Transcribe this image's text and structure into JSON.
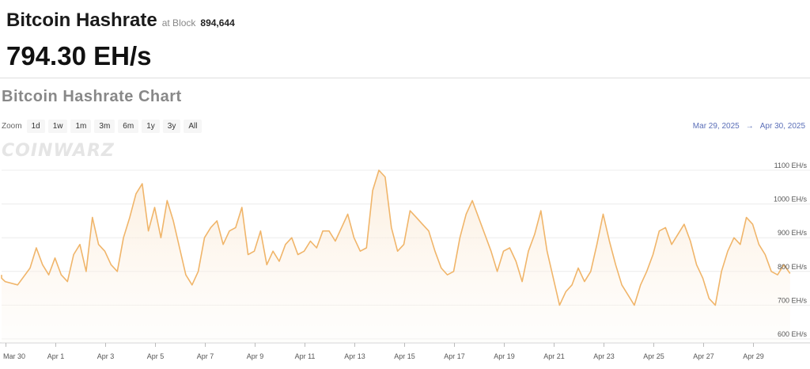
{
  "header": {
    "title": "Bitcoin Hashrate",
    "at_block_label": "at Block",
    "block_number": "894,644",
    "current_value": "794.30 EH/s"
  },
  "chart_title": "Bitcoin Hashrate Chart",
  "zoom": {
    "label": "Zoom",
    "buttons": [
      "1d",
      "1w",
      "1m",
      "3m",
      "6m",
      "1y",
      "3y",
      "All"
    ]
  },
  "range": {
    "from": "Mar 29, 2025",
    "arrow": "→",
    "to": "Apr 30, 2025"
  },
  "watermark": "COINWARZ",
  "colors": {
    "line": "#f0b56a",
    "fill_top": "#fbe7cf",
    "fill_bottom": "#fdfaf6",
    "range_text": "#5b6fb8"
  },
  "chart_data": {
    "type": "area",
    "title": "Bitcoin Hashrate Chart",
    "xlabel": "",
    "ylabel": "",
    "ylim": [
      600,
      1100
    ],
    "y_unit": "EH/s",
    "y_ticks": [
      "600 EH/s",
      "700 EH/s",
      "800 EH/s",
      "900 EH/s",
      "1000 EH/s",
      "1100 EH/s"
    ],
    "x_ticks": [
      "Mar 30",
      "Apr 1",
      "Apr 3",
      "Apr 5",
      "Apr 7",
      "Apr 9",
      "Apr 11",
      "Apr 13",
      "Apr 15",
      "Apr 17",
      "Apr 19",
      "Apr 21",
      "Apr 23",
      "Apr 25",
      "Apr 27",
      "Apr 29"
    ],
    "x_start": "Mar 29, 2025",
    "x_end": "Apr 30, 2025",
    "grid": "horizontal",
    "series": [
      {
        "x": [
          "2025-03-29",
          "2025-03-29T12:00",
          "2025-03-30",
          "2025-03-30T12:00",
          "2025-03-31",
          "2025-03-31T06:00",
          "2025-03-31T12:00",
          "2025-03-31T18:00",
          "2025-04-01",
          "2025-04-01T06:00",
          "2025-04-01T12:00",
          "2025-04-01T18:00",
          "2025-04-02",
          "2025-04-02T06:00",
          "2025-04-02T12:00",
          "2025-04-02T18:00",
          "2025-04-03",
          "2025-04-03T06:00",
          "2025-04-03T12:00",
          "2025-04-03T18:00",
          "2025-04-04",
          "2025-04-04T06:00",
          "2025-04-04T12:00",
          "2025-04-04T18:00",
          "2025-04-05",
          "2025-04-05T06:00",
          "2025-04-05T12:00",
          "2025-04-05T18:00",
          "2025-04-06",
          "2025-04-06T06:00",
          "2025-04-06T12:00",
          "2025-04-06T18:00",
          "2025-04-07",
          "2025-04-07T06:00",
          "2025-04-07T12:00",
          "2025-04-07T18:00",
          "2025-04-08",
          "2025-04-08T06:00",
          "2025-04-08T12:00",
          "2025-04-08T18:00",
          "2025-04-09",
          "2025-04-09T06:00",
          "2025-04-09T12:00",
          "2025-04-09T18:00",
          "2025-04-10",
          "2025-04-10T06:00",
          "2025-04-10T12:00",
          "2025-04-10T18:00",
          "2025-04-11",
          "2025-04-11T06:00",
          "2025-04-11T12:00",
          "2025-04-11T18:00",
          "2025-04-12",
          "2025-04-12T06:00",
          "2025-04-12T12:00",
          "2025-04-12T18:00",
          "2025-04-13",
          "2025-04-13T06:00",
          "2025-04-13T12:00",
          "2025-04-13T18:00",
          "2025-04-14",
          "2025-04-14T06:00",
          "2025-04-14T12:00",
          "2025-04-14T18:00",
          "2025-04-15",
          "2025-04-15T06:00",
          "2025-04-15T12:00",
          "2025-04-15T18:00",
          "2025-04-16",
          "2025-04-16T06:00",
          "2025-04-16T12:00",
          "2025-04-16T18:00",
          "2025-04-17",
          "2025-04-17T06:00",
          "2025-04-17T12:00",
          "2025-04-17T18:00",
          "2025-04-18",
          "2025-04-18T06:00",
          "2025-04-18T12:00",
          "2025-04-18T18:00",
          "2025-04-19",
          "2025-04-19T06:00",
          "2025-04-19T12:00",
          "2025-04-19T18:00",
          "2025-04-20",
          "2025-04-20T06:00",
          "2025-04-20T12:00",
          "2025-04-20T18:00",
          "2025-04-21",
          "2025-04-21T06:00",
          "2025-04-21T12:00",
          "2025-04-21T18:00",
          "2025-04-22",
          "2025-04-22T06:00",
          "2025-04-22T12:00",
          "2025-04-22T18:00",
          "2025-04-23",
          "2025-04-23T06:00",
          "2025-04-23T12:00",
          "2025-04-23T18:00",
          "2025-04-24",
          "2025-04-24T06:00",
          "2025-04-24T12:00",
          "2025-04-24T18:00",
          "2025-04-25",
          "2025-04-25T06:00",
          "2025-04-25T12:00",
          "2025-04-25T18:00",
          "2025-04-26",
          "2025-04-26T06:00",
          "2025-04-26T12:00",
          "2025-04-26T18:00",
          "2025-04-27",
          "2025-04-27T06:00",
          "2025-04-27T12:00",
          "2025-04-27T18:00",
          "2025-04-28",
          "2025-04-28T06:00",
          "2025-04-28T12:00",
          "2025-04-28T18:00",
          "2025-04-29",
          "2025-04-29T06:00",
          "2025-04-29T12:00",
          "2025-04-29T18:00",
          "2025-04-30",
          "2025-04-30T06:00",
          "2025-04-30T12:00"
        ],
        "values": [
          790,
          780,
          770,
          760,
          810,
          870,
          820,
          790,
          840,
          790,
          770,
          850,
          880,
          800,
          960,
          880,
          860,
          820,
          800,
          900,
          960,
          1030,
          1060,
          920,
          990,
          900,
          1010,
          950,
          870,
          790,
          760,
          800,
          900,
          930,
          950,
          880,
          920,
          930,
          990,
          850,
          860,
          920,
          820,
          860,
          830,
          880,
          900,
          850,
          860,
          890,
          870,
          920,
          920,
          890,
          930,
          970,
          900,
          860,
          870,
          1040,
          1100,
          1080,
          930,
          860,
          880,
          980,
          960,
          940,
          920,
          860,
          810,
          790,
          800,
          900,
          970,
          1010,
          960,
          910,
          860,
          800,
          860,
          870,
          830,
          770,
          860,
          910,
          980,
          860,
          780,
          700,
          740,
          760,
          810,
          770,
          800,
          880,
          970,
          890,
          820,
          760,
          730,
          700,
          760,
          800,
          850,
          920,
          930,
          880,
          910,
          940,
          890,
          820,
          780,
          720,
          700,
          800,
          860,
          900,
          880,
          960,
          940,
          880,
          850,
          800,
          790,
          820,
          794
        ]
      }
    ]
  }
}
